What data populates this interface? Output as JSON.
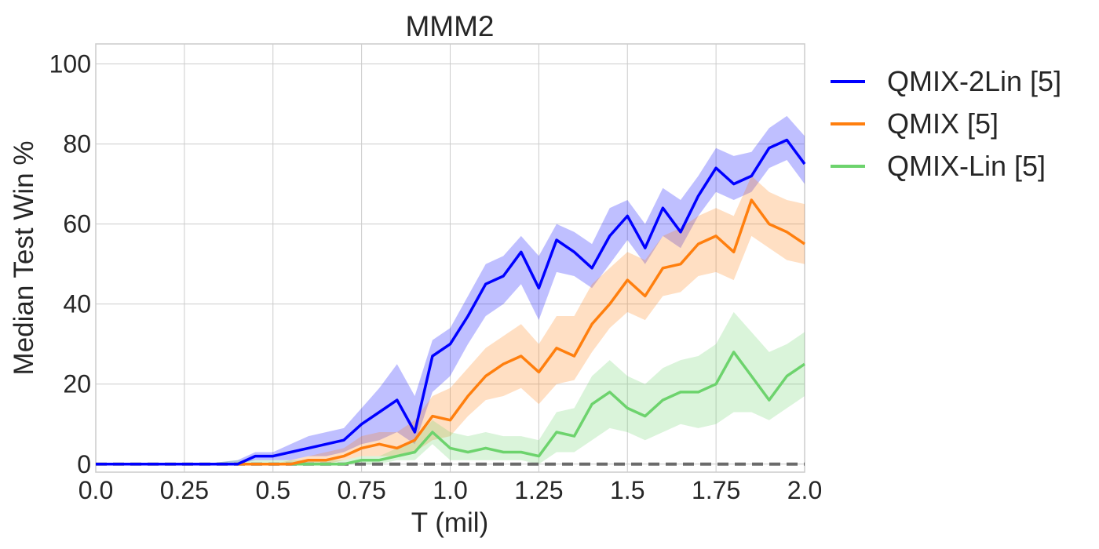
{
  "chart_data": {
    "type": "line",
    "title": "MMM2",
    "xlabel": "T (mil)",
    "ylabel": "Median Test Win %",
    "xlim": [
      0.0,
      2.0
    ],
    "ylim": [
      -2,
      105
    ],
    "xticks": [
      "0.0",
      "0.25",
      "0.5",
      "0.75",
      "1.0",
      "1.25",
      "1.5",
      "1.75",
      "2.0"
    ],
    "yticks": [
      "0",
      "20",
      "40",
      "60",
      "80",
      "100"
    ],
    "grid": true,
    "legend_position": "outside-right",
    "reference_line": {
      "y": 0,
      "style": "dashed",
      "color": "#6b6b6b"
    },
    "series": [
      {
        "name": "QMIX-2Lin [5]",
        "color": "#0000ff",
        "x": [
          0.0,
          0.1,
          0.2,
          0.3,
          0.4,
          0.45,
          0.5,
          0.55,
          0.6,
          0.65,
          0.7,
          0.75,
          0.8,
          0.85,
          0.9,
          0.95,
          1.0,
          1.05,
          1.1,
          1.15,
          1.2,
          1.25,
          1.3,
          1.35,
          1.4,
          1.45,
          1.5,
          1.55,
          1.6,
          1.65,
          1.7,
          1.75,
          1.8,
          1.85,
          1.9,
          1.95,
          2.0
        ],
        "y": [
          0,
          0,
          0,
          0,
          0,
          2,
          2,
          3,
          4,
          5,
          6,
          10,
          13,
          16,
          8,
          27,
          30,
          37,
          45,
          47,
          53,
          44,
          56,
          53,
          49,
          57,
          62,
          54,
          64,
          58,
          67,
          74,
          70,
          72,
          79,
          81,
          75
        ],
        "lower": [
          0,
          0,
          0,
          0,
          0,
          1,
          1,
          1,
          2,
          2,
          3,
          5,
          6,
          8,
          5,
          18,
          22,
          30,
          37,
          40,
          45,
          36,
          48,
          47,
          44,
          50,
          56,
          50,
          57,
          54,
          62,
          68,
          66,
          68,
          74,
          76,
          70
        ],
        "upper": [
          0,
          0,
          0,
          0,
          1,
          3,
          3,
          5,
          7,
          8,
          9,
          14,
          19,
          25,
          17,
          31,
          34,
          42,
          50,
          52,
          57,
          52,
          60,
          58,
          55,
          64,
          66,
          60,
          69,
          66,
          72,
          79,
          77,
          78,
          84,
          87,
          82
        ]
      },
      {
        "name": "QMIX [5]",
        "color": "#ff7f0e",
        "x": [
          0.0,
          0.1,
          0.2,
          0.3,
          0.4,
          0.45,
          0.5,
          0.55,
          0.6,
          0.65,
          0.7,
          0.75,
          0.8,
          0.85,
          0.9,
          0.95,
          1.0,
          1.05,
          1.1,
          1.15,
          1.2,
          1.25,
          1.3,
          1.35,
          1.4,
          1.45,
          1.5,
          1.55,
          1.6,
          1.65,
          1.7,
          1.75,
          1.8,
          1.85,
          1.9,
          1.95,
          2.0
        ],
        "y": [
          0,
          0,
          0,
          0,
          0,
          0,
          0,
          0,
          1,
          1,
          2,
          4,
          5,
          4,
          6,
          12,
          11,
          17,
          22,
          25,
          27,
          23,
          29,
          27,
          35,
          40,
          46,
          42,
          49,
          50,
          55,
          57,
          53,
          66,
          60,
          58,
          55
        ],
        "lower": [
          0,
          0,
          0,
          0,
          0,
          0,
          0,
          0,
          0,
          0,
          1,
          2,
          2,
          2,
          3,
          6,
          7,
          12,
          16,
          17,
          19,
          15,
          20,
          21,
          28,
          34,
          38,
          36,
          42,
          43,
          47,
          48,
          46,
          57,
          54,
          51,
          50
        ],
        "upper": [
          0,
          0,
          0,
          0,
          0,
          0,
          0,
          1,
          2,
          3,
          4,
          7,
          8,
          8,
          11,
          17,
          19,
          24,
          29,
          32,
          35,
          30,
          37,
          37,
          45,
          49,
          53,
          51,
          57,
          59,
          62,
          64,
          62,
          72,
          68,
          66,
          65
        ]
      },
      {
        "name": "QMIX-Lin [5]",
        "color": "#6dd36d",
        "x": [
          0.0,
          0.1,
          0.2,
          0.3,
          0.4,
          0.45,
          0.5,
          0.55,
          0.6,
          0.65,
          0.7,
          0.75,
          0.8,
          0.85,
          0.9,
          0.95,
          1.0,
          1.05,
          1.1,
          1.15,
          1.2,
          1.25,
          1.3,
          1.35,
          1.4,
          1.45,
          1.5,
          1.55,
          1.6,
          1.65,
          1.7,
          1.75,
          1.8,
          1.85,
          1.9,
          1.95,
          2.0
        ],
        "y": [
          0,
          0,
          0,
          0,
          0,
          0,
          0,
          0,
          0,
          0,
          0,
          1,
          1,
          2,
          3,
          8,
          4,
          3,
          4,
          3,
          3,
          2,
          8,
          7,
          15,
          18,
          14,
          12,
          16,
          18,
          18,
          20,
          28,
          22,
          16,
          22,
          25
        ],
        "lower": [
          0,
          0,
          0,
          0,
          0,
          0,
          0,
          0,
          0,
          0,
          0,
          0,
          0,
          1,
          1,
          5,
          1,
          1,
          1,
          1,
          1,
          0,
          3,
          3,
          6,
          9,
          8,
          6,
          8,
          10,
          9,
          10,
          13,
          13,
          11,
          14,
          17
        ],
        "upper": [
          0,
          0,
          0,
          0,
          1,
          1,
          1,
          1,
          1,
          1,
          1,
          2,
          2,
          4,
          6,
          11,
          8,
          7,
          8,
          7,
          7,
          6,
          13,
          14,
          22,
          26,
          22,
          20,
          24,
          26,
          27,
          30,
          38,
          33,
          28,
          30,
          33
        ]
      }
    ]
  }
}
